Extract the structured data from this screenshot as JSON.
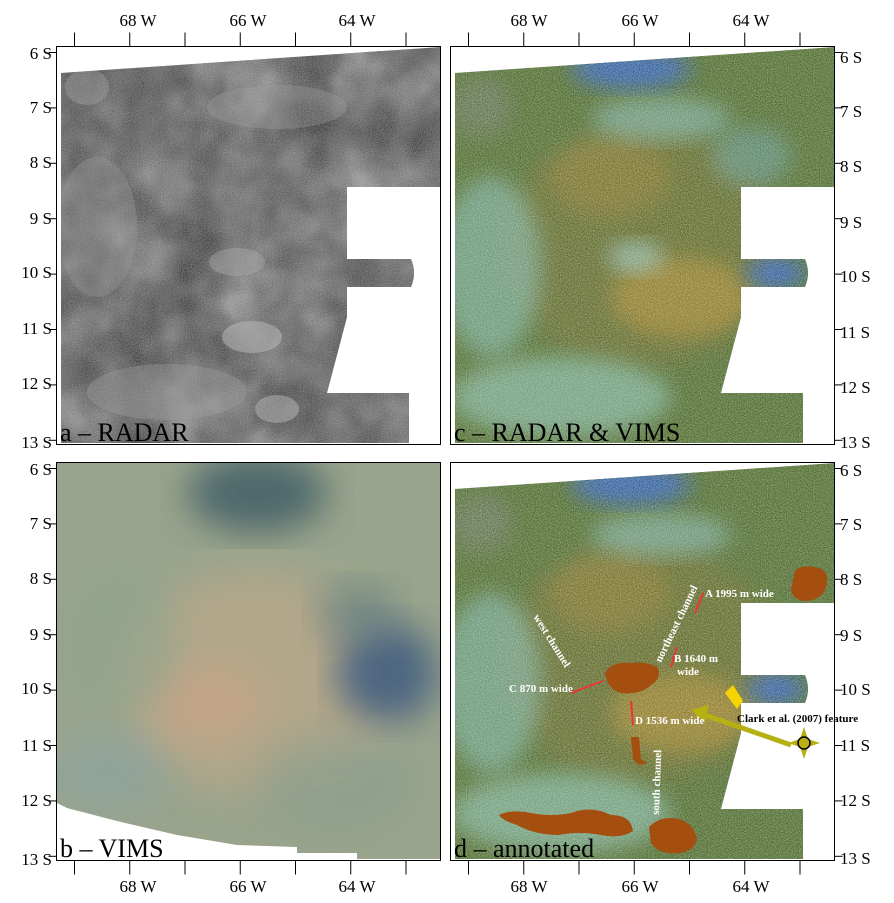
{
  "axes": {
    "longitude_ticks": [
      "68 W",
      "66 W",
      "64 W"
    ],
    "latitude_ticks": [
      "6 S",
      "7 S",
      "8 S",
      "9 S",
      "10 S",
      "11 S",
      "12 S",
      "13 S"
    ]
  },
  "panels": [
    {
      "id": "a",
      "label": "a – RADAR"
    },
    {
      "id": "b",
      "label": "b – VIMS"
    },
    {
      "id": "c",
      "label": "c – RADAR & VIMS"
    },
    {
      "id": "d",
      "label": "d – annotated"
    }
  ],
  "annotations": {
    "channels": {
      "west": "west channel",
      "northeast": "northeast channel",
      "south": "south channel"
    },
    "widths": {
      "A": "A 1995 m wide",
      "B_line1": "B 1640 m",
      "B_line2": "wide",
      "C": "C 870 m wide",
      "D": "D 1536 m wide"
    },
    "feature": "Clark et al. (2007) feature"
  },
  "colors": {
    "radar_dark": "#404040",
    "radar_light": "#b8b8b8",
    "vims_base": "#9aa48c",
    "overlay_green": "#4f6b2e",
    "overlay_cyan": "#7fb8b0",
    "overlay_blue": "#2f5fc0",
    "overlay_orange": "#b58a2a",
    "lake_brown": "#a44f10",
    "arrow_olive": "#b7b012",
    "feature_yellow": "#f5d400",
    "width_marker_red": "#e33"
  }
}
